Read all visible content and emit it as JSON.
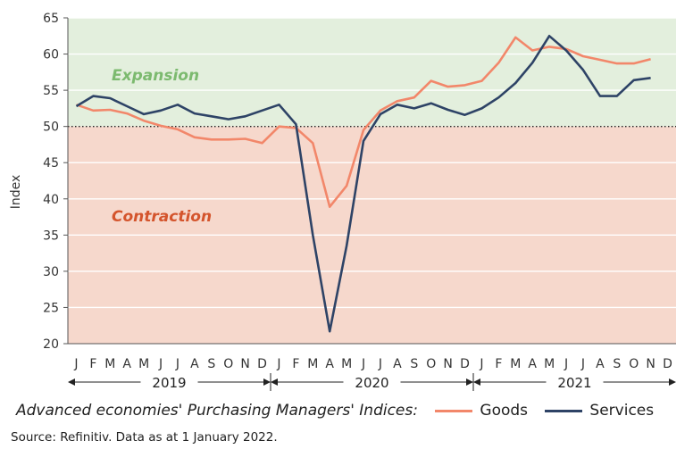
{
  "chart_data": {
    "type": "line",
    "title": "Advanced economies' Purchasing Managers' Indices:",
    "ylabel": "Index",
    "ylim": [
      20,
      65
    ],
    "yticks": [
      20,
      25,
      30,
      35,
      40,
      45,
      50,
      55,
      60,
      65
    ],
    "reference_line": 50,
    "zones": [
      {
        "label": "Expansion",
        "from": 50,
        "to": 65,
        "fill": "#e3efdd",
        "text_color": "#7cba6f"
      },
      {
        "label": "Contraction",
        "from": 20,
        "to": 50,
        "fill": "#f6d8cc",
        "text_color": "#d4542c"
      }
    ],
    "month_labels": [
      "J",
      "F",
      "M",
      "A",
      "M",
      "J",
      "J",
      "A",
      "S",
      "O",
      "N",
      "D",
      "J",
      "F",
      "M",
      "A",
      "M",
      "J",
      "J",
      "A",
      "S",
      "O",
      "N",
      "D",
      "J",
      "F",
      "M",
      "A",
      "M",
      "J",
      "J",
      "A",
      "S",
      "O",
      "N",
      "D"
    ],
    "years": [
      "2019",
      "2020",
      "2021"
    ],
    "x": [
      "2019-01",
      "2019-02",
      "2019-03",
      "2019-04",
      "2019-05",
      "2019-06",
      "2019-07",
      "2019-08",
      "2019-09",
      "2019-10",
      "2019-11",
      "2019-12",
      "2020-01",
      "2020-02",
      "2020-03",
      "2020-04",
      "2020-05",
      "2020-06",
      "2020-07",
      "2020-08",
      "2020-09",
      "2020-10",
      "2020-11",
      "2020-12",
      "2021-01",
      "2021-02",
      "2021-03",
      "2021-04",
      "2021-05",
      "2021-06",
      "2021-07",
      "2021-08",
      "2021-09",
      "2021-10",
      "2021-11"
    ],
    "series": [
      {
        "name": "Goods",
        "color": "#f2876a",
        "values": [
          53.0,
          52.2,
          52.3,
          51.8,
          50.8,
          50.1,
          49.6,
          48.5,
          48.2,
          48.2,
          48.3,
          47.7,
          50.0,
          49.8,
          47.7,
          38.9,
          41.8,
          49.5,
          52.2,
          53.5,
          54.0,
          56.3,
          55.5,
          55.7,
          56.3,
          58.8,
          62.3,
          60.5,
          61.0,
          60.7,
          59.7,
          59.2,
          58.7,
          58.7,
          59.3
        ]
      },
      {
        "name": "Services",
        "color": "#2e4366",
        "values": [
          52.8,
          54.2,
          53.9,
          52.8,
          51.7,
          52.2,
          53.0,
          51.8,
          51.4,
          51.0,
          51.4,
          52.2,
          53.0,
          50.3,
          35.0,
          21.7,
          33.5,
          48.0,
          51.7,
          53.0,
          52.5,
          53.2,
          52.3,
          51.6,
          52.5,
          54.0,
          56.0,
          58.8,
          62.5,
          60.5,
          57.8,
          54.2,
          54.2,
          56.4,
          56.7
        ]
      }
    ]
  },
  "source": "Source: Refinitiv. Data as at 1 January 2022."
}
